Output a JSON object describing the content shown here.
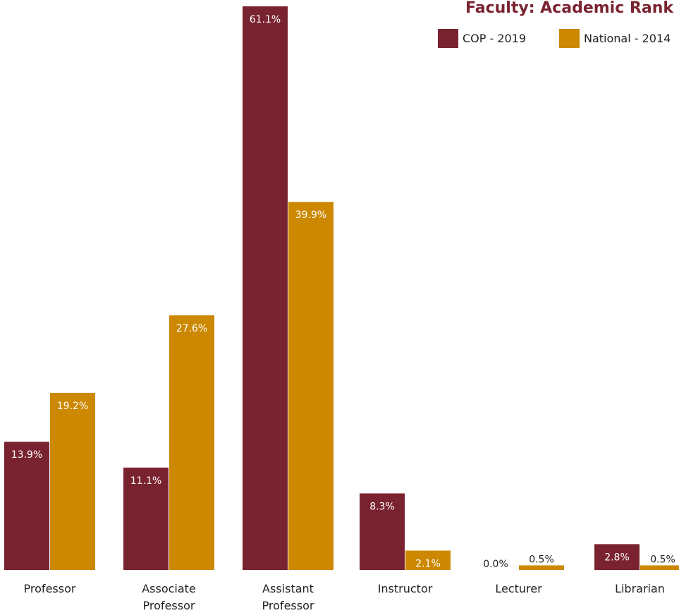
{
  "chart_data": {
    "type": "bar",
    "title": "Faculty: Academic Rank",
    "categories": [
      "Professor",
      "Associate Professor",
      "Assistant Professor",
      "Instructor",
      "Lecturer",
      "Librarian"
    ],
    "category_lines": [
      [
        "Professor"
      ],
      [
        "Associate",
        "Professor"
      ],
      [
        "Assistant",
        "Professor"
      ],
      [
        "Instructor"
      ],
      [
        "Lecturer"
      ],
      [
        "Librarian"
      ]
    ],
    "series": [
      {
        "name": "COP - 2019",
        "color": "#7a2330",
        "values": [
          13.9,
          11.1,
          61.1,
          8.3,
          0.0,
          2.8
        ],
        "labels": [
          "13.9%",
          "11.1%",
          "61.1%",
          "8.3%",
          "0.0%",
          "2.8%"
        ]
      },
      {
        "name": "National - 2014",
        "color": "#cc8800",
        "values": [
          19.2,
          27.6,
          39.9,
          2.1,
          0.5,
          0.5
        ],
        "labels": [
          "19.2%",
          "27.6%",
          "39.9%",
          "2.1%",
          "0.5%",
          "0.5%"
        ]
      }
    ],
    "ylim": [
      0,
      61.1
    ],
    "xlabel": "",
    "ylabel": "",
    "grid": false,
    "legend": "top-right",
    "value_units": "%"
  }
}
